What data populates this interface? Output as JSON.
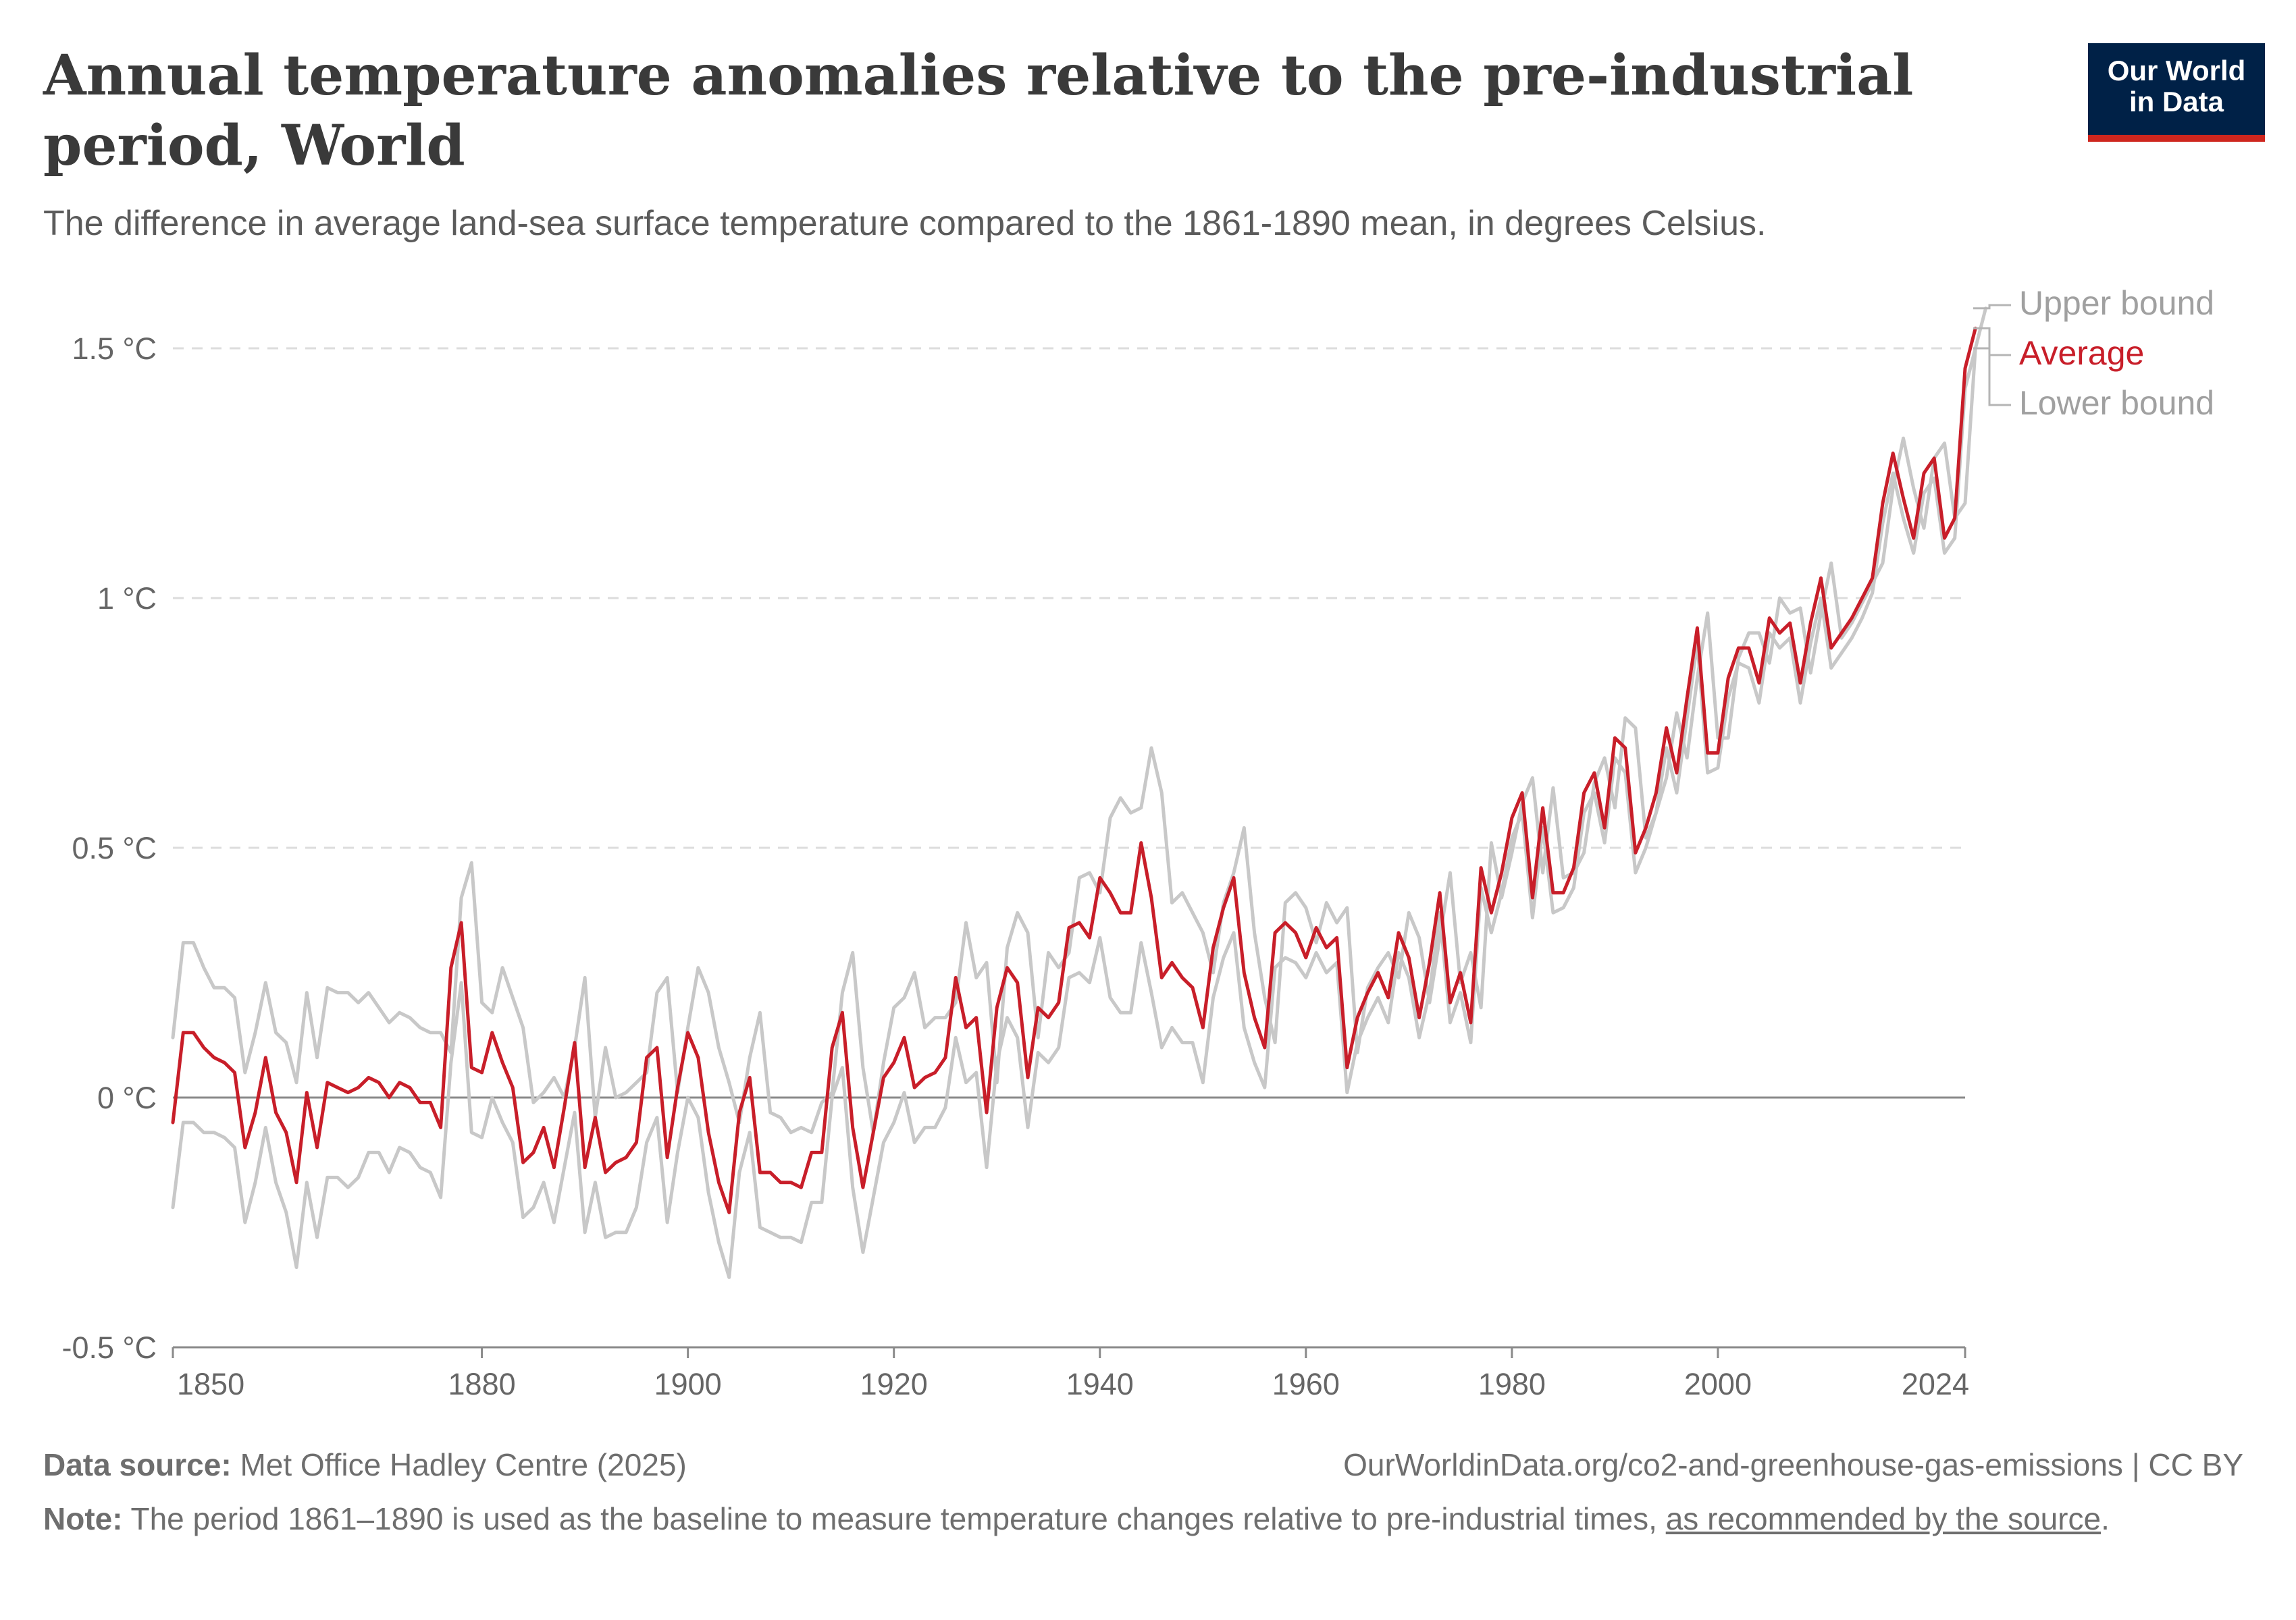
{
  "header": {
    "title": "Annual temperature anomalies relative to the pre-industrial period, World",
    "subtitle": "The difference in average land-sea surface temperature compared to the 1861-1890 mean, in degrees Celsius."
  },
  "logo": {
    "line1": "Our World",
    "line2": "in Data",
    "bg_color": "#002147",
    "accent_color": "#ce261e"
  },
  "footer": {
    "source_label": "Data source:",
    "source_text": "Met Office Hadley Centre (2025)",
    "url_text": "OurWorldinData.org/co2-and-greenhouse-gas-emissions | CC BY",
    "note_label": "Note:",
    "note_text": "The period 1861–1890 is used as the baseline to measure temperature changes relative to pre-industrial times,",
    "note_link": "as recommended by the source",
    "note_end": "."
  },
  "chart_data": {
    "type": "line",
    "x_start": 1850,
    "x_end": 2024,
    "xlim": [
      1850,
      2024
    ],
    "ylim": [
      -0.5,
      1.5
    ],
    "grid": true,
    "legend_placement": "right-end",
    "x_ticks": [
      1850,
      1880,
      1900,
      1920,
      1940,
      1960,
      1980,
      2000,
      2024
    ],
    "x_tick_labels": [
      "1850",
      "1880",
      "1900",
      "1920",
      "1940",
      "1960",
      "1980",
      "2000",
      "2024"
    ],
    "y_ticks": [
      -0.5,
      0,
      0.5,
      1,
      1.5
    ],
    "y_tick_labels": [
      "-0.5 °C",
      "0 °C",
      "0.5 °C",
      "1 °C",
      "1.5 °C"
    ],
    "series": [
      {
        "name": "Upper bound",
        "color": "#c8c8c8",
        "values": [
          0.12,
          0.31,
          0.31,
          0.26,
          0.22,
          0.22,
          0.2,
          0.05,
          0.13,
          0.23,
          0.13,
          0.11,
          0.03,
          0.21,
          0.08,
          0.22,
          0.21,
          0.21,
          0.19,
          0.21,
          0.18,
          0.15,
          0.17,
          0.16,
          0.14,
          0.13,
          0.13,
          0.09,
          0.4,
          0.47,
          0.19,
          0.17,
          0.26,
          0.2,
          0.14,
          -0.01,
          0.01,
          0.04,
          0.0,
          0.1,
          0.24,
          -0.04,
          0.1,
          0.0,
          0.01,
          0.03,
          0.05,
          0.21,
          0.24,
          0.01,
          0.14,
          0.26,
          0.21,
          0.1,
          0.03,
          -0.05,
          0.08,
          0.17,
          -0.03,
          -0.04,
          -0.07,
          -0.06,
          -0.07,
          -0.01,
          0.01,
          0.21,
          0.29,
          0.06,
          -0.07,
          0.07,
          0.18,
          0.2,
          0.25,
          0.14,
          0.16,
          0.16,
          0.19,
          0.35,
          0.24,
          0.27,
          0.03,
          0.3,
          0.37,
          0.33,
          0.12,
          0.29,
          0.26,
          0.29,
          0.44,
          0.45,
          0.41,
          0.56,
          0.6,
          0.57,
          0.58,
          0.7,
          0.61,
          0.39,
          0.41,
          0.37,
          0.33,
          0.25,
          0.39,
          0.45,
          0.54,
          0.33,
          0.2,
          0.11,
          0.39,
          0.41,
          0.38,
          0.31,
          0.39,
          0.35,
          0.38,
          0.09,
          0.22,
          0.26,
          0.29,
          0.24,
          0.37,
          0.32,
          0.19,
          0.32,
          0.45,
          0.23,
          0.29,
          0.18,
          0.51,
          0.4,
          0.49,
          0.59,
          0.64,
          0.45,
          0.62,
          0.44,
          0.45,
          0.49,
          0.63,
          0.68,
          0.58,
          0.76,
          0.74,
          0.52,
          0.57,
          0.64,
          0.77,
          0.68,
          0.84,
          0.97,
          0.72,
          0.72,
          0.88,
          0.93,
          0.93,
          0.87,
          1.0,
          0.97,
          0.98,
          0.85,
          0.97,
          1.07,
          0.92,
          0.95,
          0.99,
          1.03,
          1.07,
          1.22,
          1.32,
          1.22,
          1.14,
          1.28,
          1.31,
          1.16,
          1.19,
          1.5,
          1.58
        ]
      },
      {
        "name": "Average",
        "color": "#c81e29",
        "values": [
          -0.05,
          0.13,
          0.13,
          0.1,
          0.08,
          0.07,
          0.05,
          -0.1,
          -0.03,
          0.08,
          -0.03,
          -0.07,
          -0.17,
          0.01,
          -0.1,
          0.03,
          0.02,
          0.01,
          0.02,
          0.04,
          0.03,
          0.0,
          0.03,
          0.02,
          -0.01,
          -0.01,
          -0.06,
          0.26,
          0.35,
          0.06,
          0.05,
          0.13,
          0.07,
          0.02,
          -0.13,
          -0.11,
          -0.06,
          -0.14,
          -0.02,
          0.11,
          -0.14,
          -0.04,
          -0.15,
          -0.13,
          -0.12,
          -0.09,
          0.08,
          0.1,
          -0.12,
          0.02,
          0.13,
          0.08,
          -0.07,
          -0.17,
          -0.23,
          -0.03,
          0.04,
          -0.15,
          -0.15,
          -0.17,
          -0.17,
          -0.18,
          -0.11,
          -0.11,
          0.1,
          0.17,
          -0.06,
          -0.18,
          -0.07,
          0.04,
          0.07,
          0.12,
          0.02,
          0.04,
          0.05,
          0.08,
          0.24,
          0.14,
          0.16,
          -0.03,
          0.18,
          0.26,
          0.23,
          0.04,
          0.18,
          0.16,
          0.19,
          0.34,
          0.35,
          0.32,
          0.44,
          0.41,
          0.37,
          0.37,
          0.51,
          0.4,
          0.24,
          0.27,
          0.24,
          0.22,
          0.14,
          0.3,
          0.38,
          0.44,
          0.25,
          0.16,
          0.1,
          0.33,
          0.35,
          0.33,
          0.28,
          0.34,
          0.3,
          0.32,
          0.06,
          0.16,
          0.21,
          0.25,
          0.2,
          0.33,
          0.28,
          0.16,
          0.27,
          0.41,
          0.19,
          0.25,
          0.15,
          0.46,
          0.37,
          0.45,
          0.56,
          0.61,
          0.4,
          0.58,
          0.41,
          0.41,
          0.46,
          0.61,
          0.65,
          0.54,
          0.72,
          0.7,
          0.49,
          0.54,
          0.61,
          0.74,
          0.65,
          0.8,
          0.94,
          0.69,
          0.69,
          0.84,
          0.9,
          0.9,
          0.83,
          0.96,
          0.93,
          0.95,
          0.83,
          0.95,
          1.04,
          0.9,
          0.93,
          0.96,
          1.0,
          1.04,
          1.19,
          1.29,
          1.2,
          1.12,
          1.25,
          1.28,
          1.12,
          1.16,
          1.46,
          1.54
        ]
      },
      {
        "name": "Lower bound",
        "color": "#c8c8c8",
        "values": [
          -0.22,
          -0.05,
          -0.05,
          -0.07,
          -0.07,
          -0.08,
          -0.1,
          -0.25,
          -0.17,
          -0.06,
          -0.17,
          -0.23,
          -0.34,
          -0.17,
          -0.28,
          -0.16,
          -0.16,
          -0.18,
          -0.16,
          -0.11,
          -0.11,
          -0.15,
          -0.1,
          -0.11,
          -0.14,
          -0.15,
          -0.2,
          0.07,
          0.23,
          -0.07,
          -0.08,
          0.0,
          -0.05,
          -0.09,
          -0.24,
          -0.22,
          -0.17,
          -0.25,
          -0.14,
          -0.03,
          -0.27,
          -0.17,
          -0.28,
          -0.27,
          -0.27,
          -0.22,
          -0.09,
          -0.04,
          -0.25,
          -0.11,
          0.0,
          -0.04,
          -0.19,
          -0.29,
          -0.36,
          -0.15,
          -0.07,
          -0.26,
          -0.27,
          -0.28,
          -0.28,
          -0.29,
          -0.21,
          -0.21,
          0.0,
          0.06,
          -0.18,
          -0.31,
          -0.2,
          -0.09,
          -0.05,
          0.01,
          -0.09,
          -0.06,
          -0.06,
          -0.02,
          0.12,
          0.03,
          0.05,
          -0.14,
          0.07,
          0.16,
          0.12,
          -0.06,
          0.09,
          0.07,
          0.1,
          0.24,
          0.25,
          0.23,
          0.32,
          0.2,
          0.17,
          0.17,
          0.31,
          0.21,
          0.1,
          0.14,
          0.11,
          0.11,
          0.03,
          0.2,
          0.28,
          0.33,
          0.14,
          0.07,
          0.02,
          0.26,
          0.28,
          0.27,
          0.24,
          0.29,
          0.25,
          0.27,
          0.01,
          0.11,
          0.16,
          0.2,
          0.15,
          0.29,
          0.24,
          0.12,
          0.21,
          0.37,
          0.15,
          0.21,
          0.11,
          0.42,
          0.33,
          0.41,
          0.52,
          0.57,
          0.36,
          0.54,
          0.37,
          0.38,
          0.42,
          0.57,
          0.61,
          0.51,
          0.68,
          0.65,
          0.45,
          0.5,
          0.57,
          0.7,
          0.61,
          0.76,
          0.91,
          0.65,
          0.66,
          0.8,
          0.87,
          0.86,
          0.79,
          0.93,
          0.9,
          0.92,
          0.79,
          0.91,
          1.0,
          0.86,
          0.89,
          0.92,
          0.96,
          1.01,
          1.15,
          1.25,
          1.16,
          1.09,
          1.21,
          1.24,
          1.09,
          1.12,
          1.42,
          1.5
        ]
      }
    ]
  }
}
